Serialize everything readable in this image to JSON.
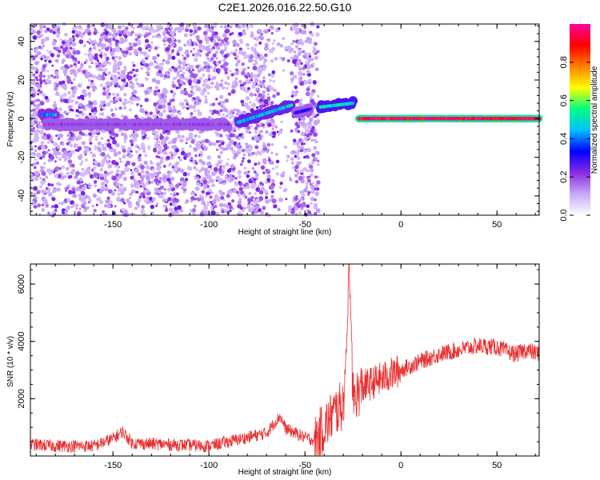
{
  "title": "C2E1.2026.016.22.50.G10",
  "chart_data": [
    {
      "type": "heatmap",
      "xlabel": "Height of straight line (km)",
      "ylabel": "Frequency (Hz)",
      "xlim": [
        -193,
        72
      ],
      "ylim": [
        -50,
        49
      ],
      "xticks": [
        -150,
        -100,
        -50,
        0,
        50
      ],
      "yticks": [
        -40,
        -20,
        0,
        20,
        40
      ],
      "colorbar": {
        "label": "Normalized spectral amplitude",
        "range": [
          0,
          1
        ],
        "ticks": [
          0.0,
          0.2,
          0.4,
          0.6,
          0.8
        ],
        "tick_labels": [
          "0.0",
          "0.2",
          "0.4",
          "0.6",
          "0.8"
        ],
        "colormap": [
          "#ffffff",
          "#c8a8f8",
          "#8a2be2",
          "#0000ff",
          "#00c0ff",
          "#00ff80",
          "#ffff00",
          "#ff8000",
          "#ff0000",
          "#ff00a0"
        ]
      },
      "features": [
        {
          "x": [
            -193,
            -43
          ],
          "y": [
            -50,
            49
          ],
          "amplitude": 0.1,
          "desc": "diffuse noise region"
        },
        {
          "x": [
            -187,
            -180
          ],
          "y": [
            2,
            2
          ],
          "amplitude": 0.4
        },
        {
          "x": [
            -185,
            -90
          ],
          "y": [
            -3,
            -3
          ],
          "amplitude": 0.2
        },
        {
          "x": [
            -85,
            -57
          ],
          "y": [
            -2,
            7
          ],
          "amplitude": 0.45
        },
        {
          "x": [
            -55,
            -47
          ],
          "y": [
            3,
            5
          ],
          "amplitude": 0.3
        },
        {
          "x": [
            -42,
            -25
          ],
          "y": [
            6,
            8
          ],
          "amplitude": 0.5
        },
        {
          "x": [
            -22,
            72
          ],
          "y": [
            0,
            0
          ],
          "amplitude": 0.95
        }
      ]
    },
    {
      "type": "line",
      "xlabel": "Height of straight line (km)",
      "ylabel": "SNR (10 * v/v)",
      "xlim": [
        -193,
        72
      ],
      "ylim": [
        0,
        6700
      ],
      "xticks": [
        -150,
        -100,
        -50,
        0,
        50
      ],
      "yticks": [
        2000,
        4000,
        6000
      ],
      "color": "#e83030",
      "series": [
        {
          "x": [
            -193,
            -180,
            -160,
            -150,
            -145,
            -140,
            -120,
            -100,
            -90,
            -80,
            -70,
            -63,
            -60,
            -55,
            -50,
            -45,
            -40,
            -35,
            -30,
            -28,
            -27,
            -25,
            -20,
            -10,
            0,
            10,
            20,
            30,
            40,
            50,
            55,
            60,
            65,
            70,
            72
          ],
          "y": [
            400,
            350,
            350,
            600,
            850,
            450,
            400,
            350,
            500,
            650,
            800,
            1400,
            950,
            800,
            650,
            550,
            1000,
            1500,
            1800,
            4200,
            6700,
            2000,
            2400,
            2700,
            3000,
            3300,
            3550,
            3700,
            3850,
            3800,
            3650,
            3550,
            3700,
            3600,
            3600
          ]
        }
      ]
    }
  ]
}
